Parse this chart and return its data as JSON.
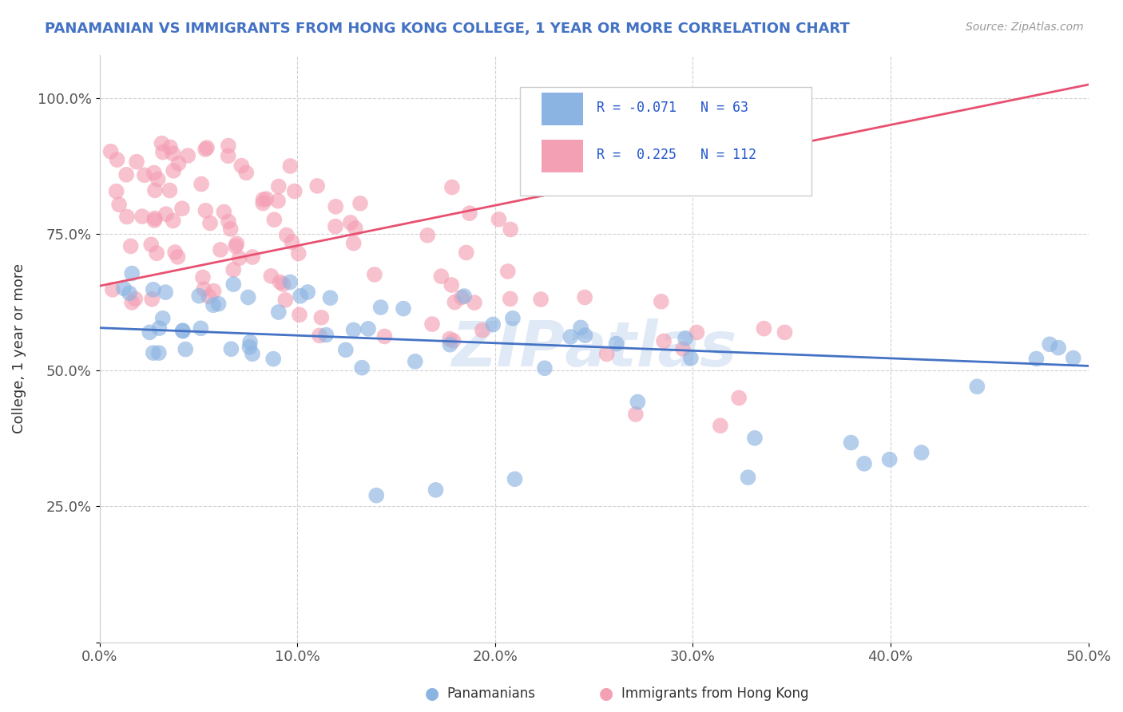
{
  "title": "PANAMANIAN VS IMMIGRANTS FROM HONG KONG COLLEGE, 1 YEAR OR MORE CORRELATION CHART",
  "source": "Source: ZipAtlas.com",
  "ylabel": "College, 1 year or more",
  "xlim": [
    0.0,
    0.5
  ],
  "ylim": [
    0.0,
    1.08
  ],
  "xticks": [
    0.0,
    0.1,
    0.2,
    0.3,
    0.4,
    0.5
  ],
  "xticklabels": [
    "0.0%",
    "10.0%",
    "20.0%",
    "30.0%",
    "40.0%",
    "50.0%"
  ],
  "yticks": [
    0.0,
    0.25,
    0.5,
    0.75,
    1.0
  ],
  "yticklabels": [
    "",
    "25.0%",
    "50.0%",
    "75.0%",
    "100.0%"
  ],
  "blue_color": "#8CB4E2",
  "pink_color": "#F4A0B4",
  "blue_line_color": "#4472C4",
  "pink_line_color": "#E85070",
  "watermark": "ZIPAtlas",
  "legend_r_blue": "-0.071",
  "legend_n_blue": 63,
  "legend_r_pink": "0.225",
  "legend_n_pink": 112,
  "blue_line_x": [
    0.0,
    0.5
  ],
  "blue_line_y": [
    0.578,
    0.508
  ],
  "pink_line_x": [
    0.0,
    0.5
  ],
  "pink_line_y": [
    0.655,
    1.025
  ]
}
